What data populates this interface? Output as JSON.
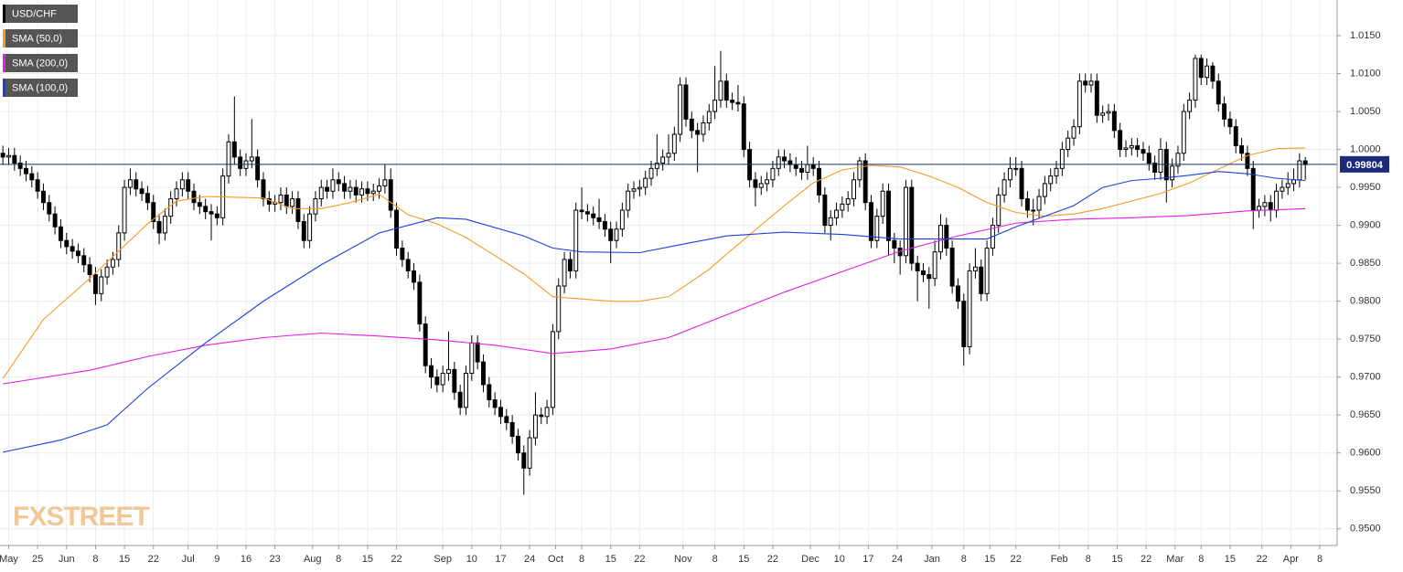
{
  "chart_data": {
    "type": "candlestick",
    "symbol": "USD/CHF",
    "symbol_color": "#000000",
    "up_color": "#ffffff",
    "down_color": "#000000",
    "open": [
      0.9995,
      0.999,
      0.9992,
      0.9982,
      0.9975,
      0.9968,
      0.996,
      0.9945,
      0.993,
      0.9915,
      0.9898,
      0.988,
      0.9872,
      0.9866,
      0.986,
      0.9848,
      0.9835,
      0.981,
      0.9832,
      0.9845,
      0.9855,
      0.989,
      0.995,
      0.996,
      0.9948,
      0.9942,
      0.993,
      0.9905,
      0.989,
      0.9912,
      0.9935,
      0.9948,
      0.996,
      0.9945,
      0.993,
      0.9925,
      0.9918,
      0.9915,
      0.991,
      0.9965,
      1.001,
      0.999,
      0.9975,
      0.9985,
      0.999,
      0.996,
      0.9935,
      0.9928,
      0.993,
      0.994,
      0.9925,
      0.9935,
      0.9905,
      0.988,
      0.9915,
      0.9935,
      0.995,
      0.9945,
      0.996,
      0.9955,
      0.9945,
      0.995,
      0.994,
      0.9948,
      0.9942,
      0.9945,
      0.9952,
      0.996,
      0.992,
      0.987,
      0.9855,
      0.984,
      0.9825,
      0.977,
      0.9715,
      0.97,
      0.969,
      0.9705,
      0.971,
      0.968,
      0.966,
      0.9705,
      0.9745,
      0.972,
      0.969,
      0.967,
      0.966,
      0.9648,
      0.964,
      0.9622,
      0.96,
      0.958,
      0.962,
      0.965,
      0.9648,
      0.966,
      0.976,
      0.982,
      0.9855,
      0.984,
      0.992,
      0.9918,
      0.9915,
      0.991,
      0.9905,
      0.9895,
      0.988,
      0.9895,
      0.992,
      0.9945,
      0.9948,
      0.995,
      0.9962,
      0.9975,
      0.9982,
      0.999,
      0.9995,
      1.002,
      1.0085,
      1.004,
      1.0025,
      1.002,
      1.0035,
      1.005,
      1.0065,
      1.009,
      1.0065,
      1.0062,
      1.006,
      1.0,
      0.996,
      0.995,
      0.9955,
      0.996,
      0.9975,
      0.999,
      0.9985,
      0.998,
      0.9975,
      0.997,
      0.998,
      0.9975,
      0.994,
      0.99,
      0.991,
      0.992,
      0.9928,
      0.9935,
      0.996,
      0.9985,
      0.993,
      0.988,
      0.9912,
      0.9945,
      0.988,
      0.987,
      0.986,
      0.995,
      0.985,
      0.984,
      0.9835,
      0.983,
      0.9865,
      0.99,
      0.987,
      0.982,
      0.98,
      0.974,
      0.984,
      0.9845,
      0.981,
      0.987,
      0.99,
      0.994,
      0.996,
      0.9975,
      0.9975,
      0.9935,
      0.992,
      0.992,
      0.9938,
      0.9955,
      0.9965,
      0.9975,
      1.0,
      1.0015,
      1.003,
      1.009,
      1.0085,
      1.009,
      1.0045,
      1.0048,
      1.005,
      1.0025,
      1.0,
      1.0002,
      1.0005,
      1.0,
      0.9995,
      0.9982,
      0.997,
      1.0,
      0.996,
      0.9978,
      0.9995,
      1.005,
      1.0065,
      1.012,
      1.0095,
      1.011,
      1.009,
      1.006,
      1.004,
      1.003,
      1.0005,
      0.9995,
      0.9975,
      0.992,
      0.9925,
      0.993,
      0.992,
      0.9945,
      0.995,
      0.9955,
      0.996,
      0.9985
    ],
    "high": [
      1.0005,
      1.0002,
      1.0002,
      0.9992,
      0.9985,
      0.9978,
      0.997,
      0.9955,
      0.994,
      0.9925,
      0.9908,
      0.989,
      0.9882,
      0.9876,
      0.987,
      0.9858,
      0.9845,
      0.9842,
      0.9855,
      0.9865,
      0.99,
      0.996,
      0.9975,
      0.997,
      0.9958,
      0.9952,
      0.994,
      0.9915,
      0.9922,
      0.9945,
      0.9958,
      0.997,
      0.997,
      0.9955,
      0.994,
      0.9935,
      0.9928,
      0.9925,
      0.9975,
      1.002,
      1.007,
      1.0,
      0.9995,
      1.004,
      1.0,
      0.997,
      0.9945,
      0.994,
      0.995,
      0.995,
      0.9945,
      0.9945,
      0.9915,
      0.9925,
      0.9945,
      0.996,
      0.996,
      0.9975,
      0.997,
      0.9965,
      0.996,
      0.996,
      0.9958,
      0.9958,
      0.9955,
      0.9962,
      0.998,
      0.9975,
      0.993,
      0.988,
      0.9865,
      0.985,
      0.9835,
      0.978,
      0.9725,
      0.971,
      0.9715,
      0.976,
      0.972,
      0.969,
      0.9715,
      0.9755,
      0.9755,
      0.973,
      0.97,
      0.968,
      0.967,
      0.9658,
      0.965,
      0.9632,
      0.961,
      0.963,
      0.968,
      0.966,
      0.967,
      0.977,
      0.983,
      0.9865,
      0.9865,
      0.993,
      0.995,
      0.9928,
      0.9925,
      0.9935,
      0.9915,
      0.9905,
      0.9905,
      0.993,
      0.9955,
      0.9958,
      0.996,
      0.9972,
      0.9985,
      1.002,
      1.0,
      1.002,
      1.003,
      1.0095,
      1.0095,
      1.005,
      1.0035,
      1.0045,
      1.006,
      1.011,
      1.013,
      1.01,
      1.0075,
      1.0085,
      1.007,
      1.001,
      0.997,
      0.9965,
      0.997,
      0.9985,
      1.0,
      1.0,
      0.9995,
      0.999,
      0.9985,
      1.0005,
      0.999,
      0.9985,
      0.995,
      0.992,
      0.993,
      0.9938,
      0.9945,
      0.997,
      0.999,
      0.9995,
      0.994,
      0.9922,
      0.9955,
      0.9955,
      0.989,
      0.988,
      0.996,
      0.996,
      0.986,
      0.985,
      0.9845,
      0.988,
      0.9915,
      0.991,
      0.988,
      0.983,
      0.981,
      0.985,
      0.987,
      0.9855,
      0.988,
      0.991,
      0.995,
      0.997,
      0.999,
      0.999,
      0.9985,
      0.9945,
      0.9935,
      0.9948,
      0.9965,
      0.9975,
      0.9985,
      1.001,
      1.0025,
      1.004,
      1.01,
      1.01,
      1.01,
      1.01,
      1.0058,
      1.006,
      1.006,
      1.0035,
      1.0012,
      1.0015,
      1.0015,
      1.001,
      1.0005,
      0.9992,
      1.0015,
      1.001,
      0.9988,
      1.0005,
      1.006,
      1.0075,
      1.0125,
      1.0125,
      1.012,
      1.0115,
      1.01,
      1.007,
      1.005,
      1.004,
      1.0015,
      1.0005,
      0.9985,
      0.9935,
      0.994,
      0.994,
      0.9955,
      0.996,
      0.997,
      0.9975,
      0.9995,
      0.999
    ],
    "low": [
      0.998,
      0.998,
      0.9972,
      0.9965,
      0.9958,
      0.995,
      0.9935,
      0.992,
      0.9905,
      0.9888,
      0.987,
      0.9862,
      0.9856,
      0.985,
      0.9838,
      0.9825,
      0.9795,
      0.98,
      0.9822,
      0.9835,
      0.9845,
      0.988,
      0.994,
      0.9938,
      0.9932,
      0.992,
      0.9895,
      0.9875,
      0.988,
      0.9902,
      0.9925,
      0.9938,
      0.9935,
      0.992,
      0.9915,
      0.9908,
      0.988,
      0.99,
      0.99,
      0.9955,
      0.998,
      0.9965,
      0.9965,
      0.9975,
      0.995,
      0.9925,
      0.9918,
      0.9918,
      0.992,
      0.9915,
      0.9915,
      0.9895,
      0.987,
      0.987,
      0.9905,
      0.9925,
      0.9935,
      0.9935,
      0.9945,
      0.9935,
      0.9935,
      0.993,
      0.993,
      0.9932,
      0.9932,
      0.9935,
      0.9942,
      0.991,
      0.986,
      0.9845,
      0.983,
      0.9815,
      0.976,
      0.9705,
      0.9685,
      0.968,
      0.968,
      0.9695,
      0.967,
      0.965,
      0.965,
      0.9695,
      0.971,
      0.968,
      0.966,
      0.965,
      0.9638,
      0.963,
      0.9612,
      0.959,
      0.9545,
      0.957,
      0.961,
      0.9638,
      0.9638,
      0.965,
      0.975,
      0.981,
      0.983,
      0.983,
      0.9908,
      0.9905,
      0.99,
      0.9895,
      0.9885,
      0.985,
      0.987,
      0.9885,
      0.991,
      0.9935,
      0.9938,
      0.994,
      0.9952,
      0.9965,
      0.9972,
      0.998,
      0.9985,
      1.001,
      1.003,
      1.0015,
      0.997,
      1.001,
      1.0025,
      1.004,
      1.0055,
      1.0055,
      1.0052,
      1.005,
      0.999,
      0.995,
      0.9925,
      0.994,
      0.9945,
      0.995,
      0.9965,
      0.9975,
      0.997,
      0.9965,
      0.996,
      0.996,
      0.9965,
      0.993,
      0.989,
      0.988,
      0.99,
      0.991,
      0.9918,
      0.9925,
      0.995,
      0.992,
      0.987,
      0.987,
      0.9902,
      0.986,
      0.985,
      0.9835,
      0.985,
      0.984,
      0.98,
      0.9825,
      0.979,
      0.982,
      0.9855,
      0.986,
      0.981,
      0.979,
      0.9715,
      0.973,
      0.983,
      0.98,
      0.98,
      0.986,
      0.989,
      0.993,
      0.995,
      0.9965,
      0.9925,
      0.991,
      0.99,
      0.991,
      0.9928,
      0.9945,
      0.9955,
      0.9965,
      0.999,
      1.0005,
      1.002,
      1.0075,
      1.0075,
      1.0035,
      1.0035,
      1.0038,
      1.0015,
      0.999,
      0.999,
      0.9992,
      0.999,
      0.9985,
      0.9972,
      0.996,
      0.996,
      0.993,
      0.995,
      0.9968,
      0.9985,
      1.004,
      1.0055,
      1.0085,
      1.0085,
      1.008,
      1.005,
      1.003,
      1.002,
      0.9995,
      0.9985,
      0.9965,
      0.9895,
      0.991,
      0.9912,
      0.9905,
      0.991,
      0.9935,
      0.994,
      0.9945,
      0.995,
      0.996
    ],
    "close": [
      0.999,
      0.9992,
      0.9982,
      0.9975,
      0.9968,
      0.996,
      0.9945,
      0.993,
      0.9915,
      0.9898,
      0.988,
      0.9872,
      0.9866,
      0.986,
      0.9848,
      0.9835,
      0.981,
      0.9832,
      0.9845,
      0.9855,
      0.989,
      0.995,
      0.996,
      0.9948,
      0.9942,
      0.993,
      0.9905,
      0.989,
      0.9912,
      0.9935,
      0.9948,
      0.996,
      0.9945,
      0.993,
      0.9925,
      0.9918,
      0.9915,
      0.991,
      0.9965,
      1.001,
      0.999,
      0.9975,
      0.9985,
      0.999,
      0.996,
      0.9935,
      0.9928,
      0.993,
      0.994,
      0.9925,
      0.9935,
      0.9905,
      0.988,
      0.9915,
      0.9935,
      0.995,
      0.9945,
      0.996,
      0.9955,
      0.9945,
      0.995,
      0.994,
      0.9948,
      0.9942,
      0.9945,
      0.9952,
      0.996,
      0.992,
      0.987,
      0.9855,
      0.984,
      0.9825,
      0.977,
      0.9715,
      0.97,
      0.969,
      0.9705,
      0.971,
      0.968,
      0.966,
      0.9705,
      0.9745,
      0.972,
      0.969,
      0.967,
      0.966,
      0.9648,
      0.964,
      0.9622,
      0.96,
      0.958,
      0.962,
      0.965,
      0.9648,
      0.966,
      0.976,
      0.982,
      0.9855,
      0.984,
      0.992,
      0.9918,
      0.9915,
      0.991,
      0.9905,
      0.9895,
      0.988,
      0.9895,
      0.992,
      0.9945,
      0.9948,
      0.995,
      0.9962,
      0.9975,
      0.9982,
      0.999,
      0.9995,
      1.002,
      1.0085,
      1.004,
      1.0025,
      1.002,
      1.0035,
      1.005,
      1.0065,
      1.009,
      1.0065,
      1.0062,
      1.006,
      1.0,
      0.996,
      0.995,
      0.9955,
      0.996,
      0.9975,
      0.999,
      0.9985,
      0.998,
      0.9975,
      0.997,
      0.998,
      0.9975,
      0.994,
      0.99,
      0.991,
      0.992,
      0.9928,
      0.9935,
      0.996,
      0.9985,
      0.993,
      0.988,
      0.9912,
      0.9945,
      0.988,
      0.987,
      0.986,
      0.995,
      0.985,
      0.984,
      0.9835,
      0.983,
      0.9865,
      0.99,
      0.987,
      0.982,
      0.98,
      0.974,
      0.984,
      0.9845,
      0.981,
      0.987,
      0.99,
      0.994,
      0.996,
      0.9975,
      0.9975,
      0.9935,
      0.992,
      0.992,
      0.9938,
      0.9955,
      0.9965,
      0.9975,
      1.0,
      1.0015,
      1.003,
      1.009,
      1.0085,
      1.009,
      1.0045,
      1.0048,
      1.005,
      1.0025,
      1.0,
      1.0002,
      1.0005,
      1.0,
      0.9995,
      0.9982,
      0.997,
      1.0,
      0.996,
      0.9978,
      0.9995,
      1.005,
      1.0065,
      1.012,
      1.0095,
      1.011,
      1.009,
      1.006,
      1.004,
      1.003,
      1.0005,
      0.9995,
      0.9975,
      0.992,
      0.9925,
      0.993,
      0.992,
      0.9945,
      0.995,
      0.9955,
      0.996,
      0.9985,
      0.998
    ],
    "series": [
      {
        "name": "SMA (50,0)",
        "color": "#f39c28",
        "x": [
          0,
          7,
          15,
          25,
          30,
          35,
          45,
          50,
          55,
          60,
          65,
          70,
          75,
          80,
          85,
          90,
          95,
          100,
          105,
          110,
          115,
          118,
          122,
          125,
          130,
          135,
          140,
          145,
          150,
          155,
          160,
          165,
          170,
          175,
          180,
          185,
          190,
          195,
          200,
          205,
          210,
          215,
          220,
          225
        ],
        "values": [
          0.9698,
          0.9776,
          0.983,
          0.9902,
          0.9932,
          0.9938,
          0.9936,
          0.9922,
          0.9922,
          0.993,
          0.9941,
          0.9914,
          0.9902,
          0.9884,
          0.986,
          0.9836,
          0.9806,
          0.9803,
          0.98,
          0.98,
          0.9806,
          0.9821,
          0.9842,
          0.9862,
          0.9894,
          0.9926,
          0.9956,
          0.9973,
          0.9979,
          0.9977,
          0.9965,
          0.995,
          0.993,
          0.9917,
          0.9912,
          0.9915,
          0.9922,
          0.9932,
          0.9942,
          0.9956,
          0.9974,
          0.9992,
          1.0001,
          1.0002
        ]
      },
      {
        "name": "SMA (200,0)",
        "color": "#e61ee6",
        "x": [
          0,
          15,
          25,
          35,
          45,
          55,
          65,
          75,
          85,
          95,
          105,
          115,
          125,
          135,
          145,
          155,
          165,
          175,
          185,
          195,
          205,
          215,
          225
        ],
        "values": [
          0.9691,
          0.9709,
          0.9727,
          0.9742,
          0.9752,
          0.9758,
          0.9754,
          0.9749,
          0.9742,
          0.9731,
          0.9737,
          0.9752,
          0.9782,
          0.9812,
          0.9839,
          0.9866,
          0.9886,
          0.9903,
          0.9908,
          0.991,
          0.9913,
          0.9919,
          0.9922
        ]
      },
      {
        "name": "SMA (100,0)",
        "color": "#1a3fe0",
        "x": [
          0,
          10,
          18,
          25,
          35,
          45,
          55,
          65,
          75,
          80,
          90,
          95,
          100,
          110,
          118,
          125,
          135,
          145,
          155,
          162,
          170,
          175,
          180,
          185,
          190,
          195,
          200,
          205,
          210,
          215,
          220,
          225
        ],
        "values": [
          0.9601,
          0.9617,
          0.9637,
          0.9685,
          0.9745,
          0.98,
          0.9848,
          0.989,
          0.991,
          0.9908,
          0.9886,
          0.987,
          0.9865,
          0.9864,
          0.9876,
          0.9886,
          0.9891,
          0.9888,
          0.9882,
          0.9882,
          0.9882,
          0.9898,
          0.9912,
          0.9926,
          0.995,
          0.9959,
          0.9962,
          0.9966,
          0.9971,
          0.9968,
          0.9962,
          0.9959
        ]
      }
    ],
    "last_price": 0.99804,
    "last_price_color": "#1b2a7a",
    "xlim": [
      -0.5,
      230.5
    ],
    "ylim": [
      0.9478,
      1.0197
    ],
    "xticks": [
      {
        "value": 1,
        "label": "May"
      },
      {
        "value": 6,
        "label": "25"
      },
      {
        "value": 11,
        "label": "Jun"
      },
      {
        "value": 16,
        "label": "8"
      },
      {
        "value": 21,
        "label": "15"
      },
      {
        "value": 26,
        "label": "22"
      },
      {
        "value": 32,
        "label": "Jul"
      },
      {
        "value": 37,
        "label": "9"
      },
      {
        "value": 42,
        "label": "16"
      },
      {
        "value": 47,
        "label": "23"
      },
      {
        "value": 53.5,
        "label": "Aug"
      },
      {
        "value": 58,
        "label": "8"
      },
      {
        "value": 63,
        "label": "15"
      },
      {
        "value": 68,
        "label": "22"
      },
      {
        "value": 76,
        "label": "Sep"
      },
      {
        "value": 81,
        "label": "10"
      },
      {
        "value": 86,
        "label": "17"
      },
      {
        "value": 91,
        "label": "24"
      },
      {
        "value": 95.5,
        "label": "Oct"
      },
      {
        "value": 100,
        "label": "8"
      },
      {
        "value": 105,
        "label": "15"
      },
      {
        "value": 110,
        "label": "22"
      },
      {
        "value": 117.5,
        "label": "Nov"
      },
      {
        "value": 123,
        "label": "8"
      },
      {
        "value": 128,
        "label": "15"
      },
      {
        "value": 133,
        "label": "22"
      },
      {
        "value": 139.5,
        "label": "Dec"
      },
      {
        "value": 144.5,
        "label": "10"
      },
      {
        "value": 149.5,
        "label": "17"
      },
      {
        "value": 154.5,
        "label": "24"
      },
      {
        "value": 160.5,
        "label": "Jan"
      },
      {
        "value": 166,
        "label": "8"
      },
      {
        "value": 170.5,
        "label": "15"
      },
      {
        "value": 175,
        "label": "22"
      },
      {
        "value": 182.5,
        "label": "Feb"
      },
      {
        "value": 187.5,
        "label": "8"
      },
      {
        "value": 192.5,
        "label": "15"
      },
      {
        "value": 197.5,
        "label": "22"
      },
      {
        "value": 202.5,
        "label": "Mar"
      },
      {
        "value": 207,
        "label": "8"
      },
      {
        "value": 212,
        "label": "15"
      },
      {
        "value": 217.5,
        "label": "22"
      },
      {
        "value": 222.5,
        "label": "Apr"
      },
      {
        "value": 227.5,
        "label": "8"
      }
    ],
    "yticks": [
      {
        "value": 0.95,
        "label": "0.9500"
      },
      {
        "value": 0.955,
        "label": "0.9550"
      },
      {
        "value": 0.96,
        "label": "0.9600"
      },
      {
        "value": 0.965,
        "label": "0.9650"
      },
      {
        "value": 0.97,
        "label": "0.9700"
      },
      {
        "value": 0.975,
        "label": "0.9750"
      },
      {
        "value": 0.98,
        "label": "0.9800"
      },
      {
        "value": 0.985,
        "label": "0.9850"
      },
      {
        "value": 0.99,
        "label": "0.9900"
      },
      {
        "value": 0.995,
        "label": "0.9950"
      },
      {
        "value": 1.0,
        "label": "1.0000"
      },
      {
        "value": 1.005,
        "label": "1.0050"
      },
      {
        "value": 1.01,
        "label": "1.0100"
      },
      {
        "value": 1.015,
        "label": "1.0150"
      }
    ],
    "grid": true,
    "watermark": "FXSTREET"
  }
}
